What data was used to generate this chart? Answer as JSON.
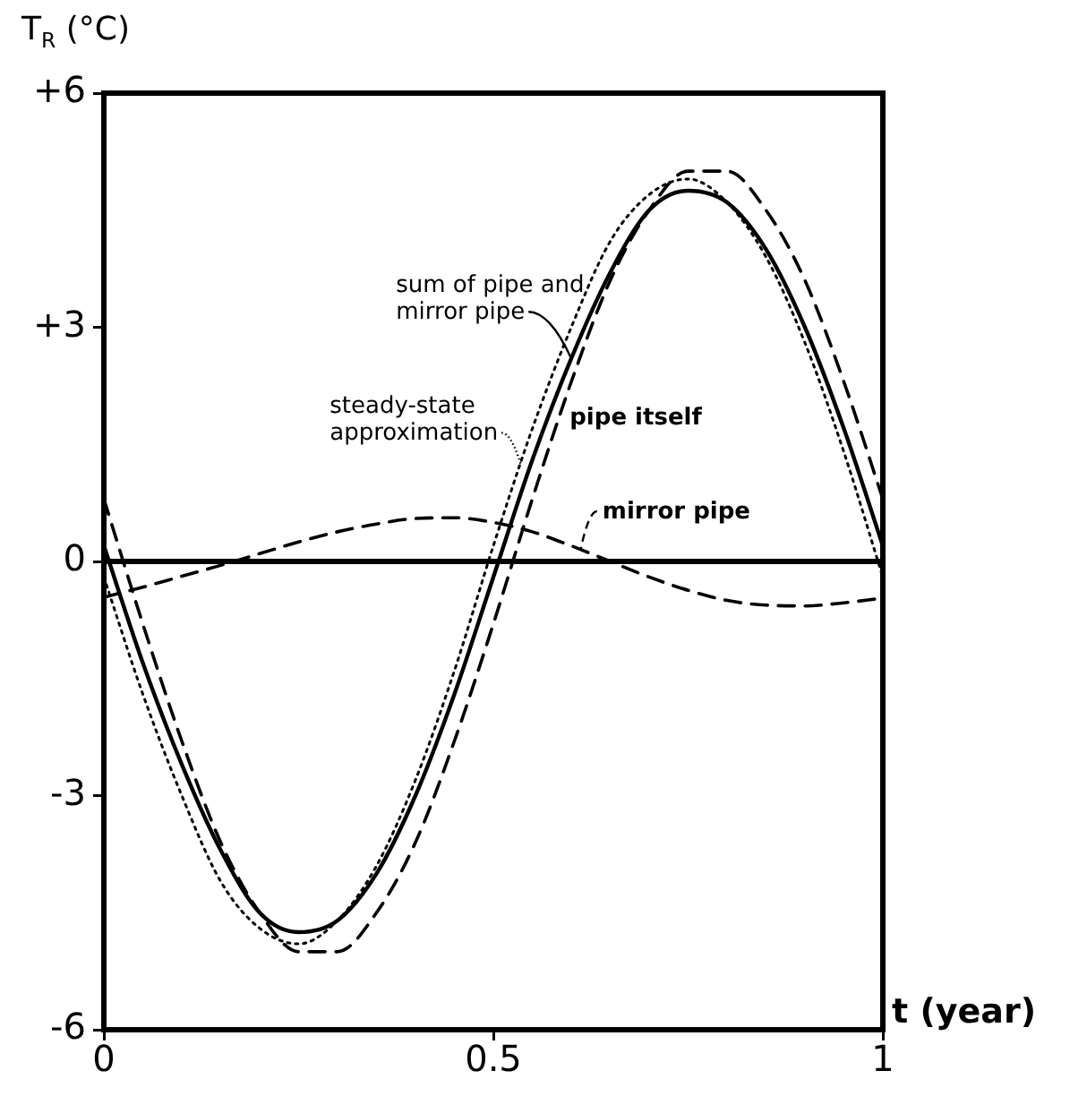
{
  "chart_data": {
    "type": "line",
    "xlabel": "t (year)",
    "ylabel": "T$_{R}$ (°C)",
    "x": [
      0,
      0.05,
      0.1,
      0.15,
      0.2,
      0.25,
      0.3,
      0.35,
      0.4,
      0.45,
      0.5,
      0.55,
      0.6,
      0.65,
      0.7,
      0.75,
      0.8,
      0.85,
      0.9,
      0.95,
      1
    ],
    "xlim": [
      0,
      1
    ],
    "xticks": [
      0,
      0.5,
      1
    ],
    "ylim": [
      -6,
      6
    ],
    "yticks": [
      {
        "value": -6,
        "label": "-6"
      },
      {
        "value": -3,
        "label": "-3"
      },
      {
        "value": 0,
        "label": "0"
      },
      {
        "value": 3,
        "label": "+3"
      },
      {
        "value": 6,
        "label": "+6"
      }
    ],
    "grid": false,
    "legend": false,
    "marker": "none",
    "ref_lines": [
      {
        "axis": "y",
        "value": 0,
        "color": "#000000",
        "line_style": "solid"
      }
    ],
    "series": [
      {
        "name": "sum of pipe and mirror pipe",
        "color": "#000000",
        "line_style": "solid",
        "values": [
          0.2,
          -1.3,
          -2.6,
          -3.7,
          -4.5,
          -4.75,
          -4.6,
          -4.0,
          -3.0,
          -1.7,
          -0.2,
          1.3,
          2.6,
          3.7,
          4.5,
          4.75,
          4.6,
          4.0,
          3.0,
          1.7,
          0.2
        ]
      },
      {
        "name": "pipe itself",
        "color": "#000000",
        "line_style": "dashed",
        "values": [
          0.8,
          -0.8,
          -2.3,
          -3.6,
          -4.5,
          -5.0,
          -5.0,
          -4.5,
          -3.6,
          -2.3,
          -0.8,
          0.8,
          2.3,
          3.6,
          4.5,
          5.0,
          5.0,
          4.5,
          3.6,
          2.3,
          0.8
        ]
      },
      {
        "name": "steady-state approximation",
        "color": "#000000",
        "line_style": "dotted",
        "values": [
          -0.2,
          -1.7,
          -3.0,
          -4.1,
          -4.7,
          -4.9,
          -4.6,
          -3.9,
          -2.8,
          -1.4,
          0.2,
          1.7,
          3.0,
          4.1,
          4.7,
          4.9,
          4.6,
          3.9,
          2.8,
          1.4,
          -0.2
        ]
      },
      {
        "name": "mirror pipe",
        "color": "#000000",
        "line_style": "dashed",
        "values": [
          -0.46,
          -0.33,
          -0.19,
          -0.05,
          0.1,
          0.25,
          0.38,
          0.48,
          0.55,
          0.56,
          0.5,
          0.38,
          0.2,
          0.0,
          -0.2,
          -0.37,
          -0.5,
          -0.56,
          -0.57,
          -0.53,
          -0.47
        ]
      }
    ]
  }
}
